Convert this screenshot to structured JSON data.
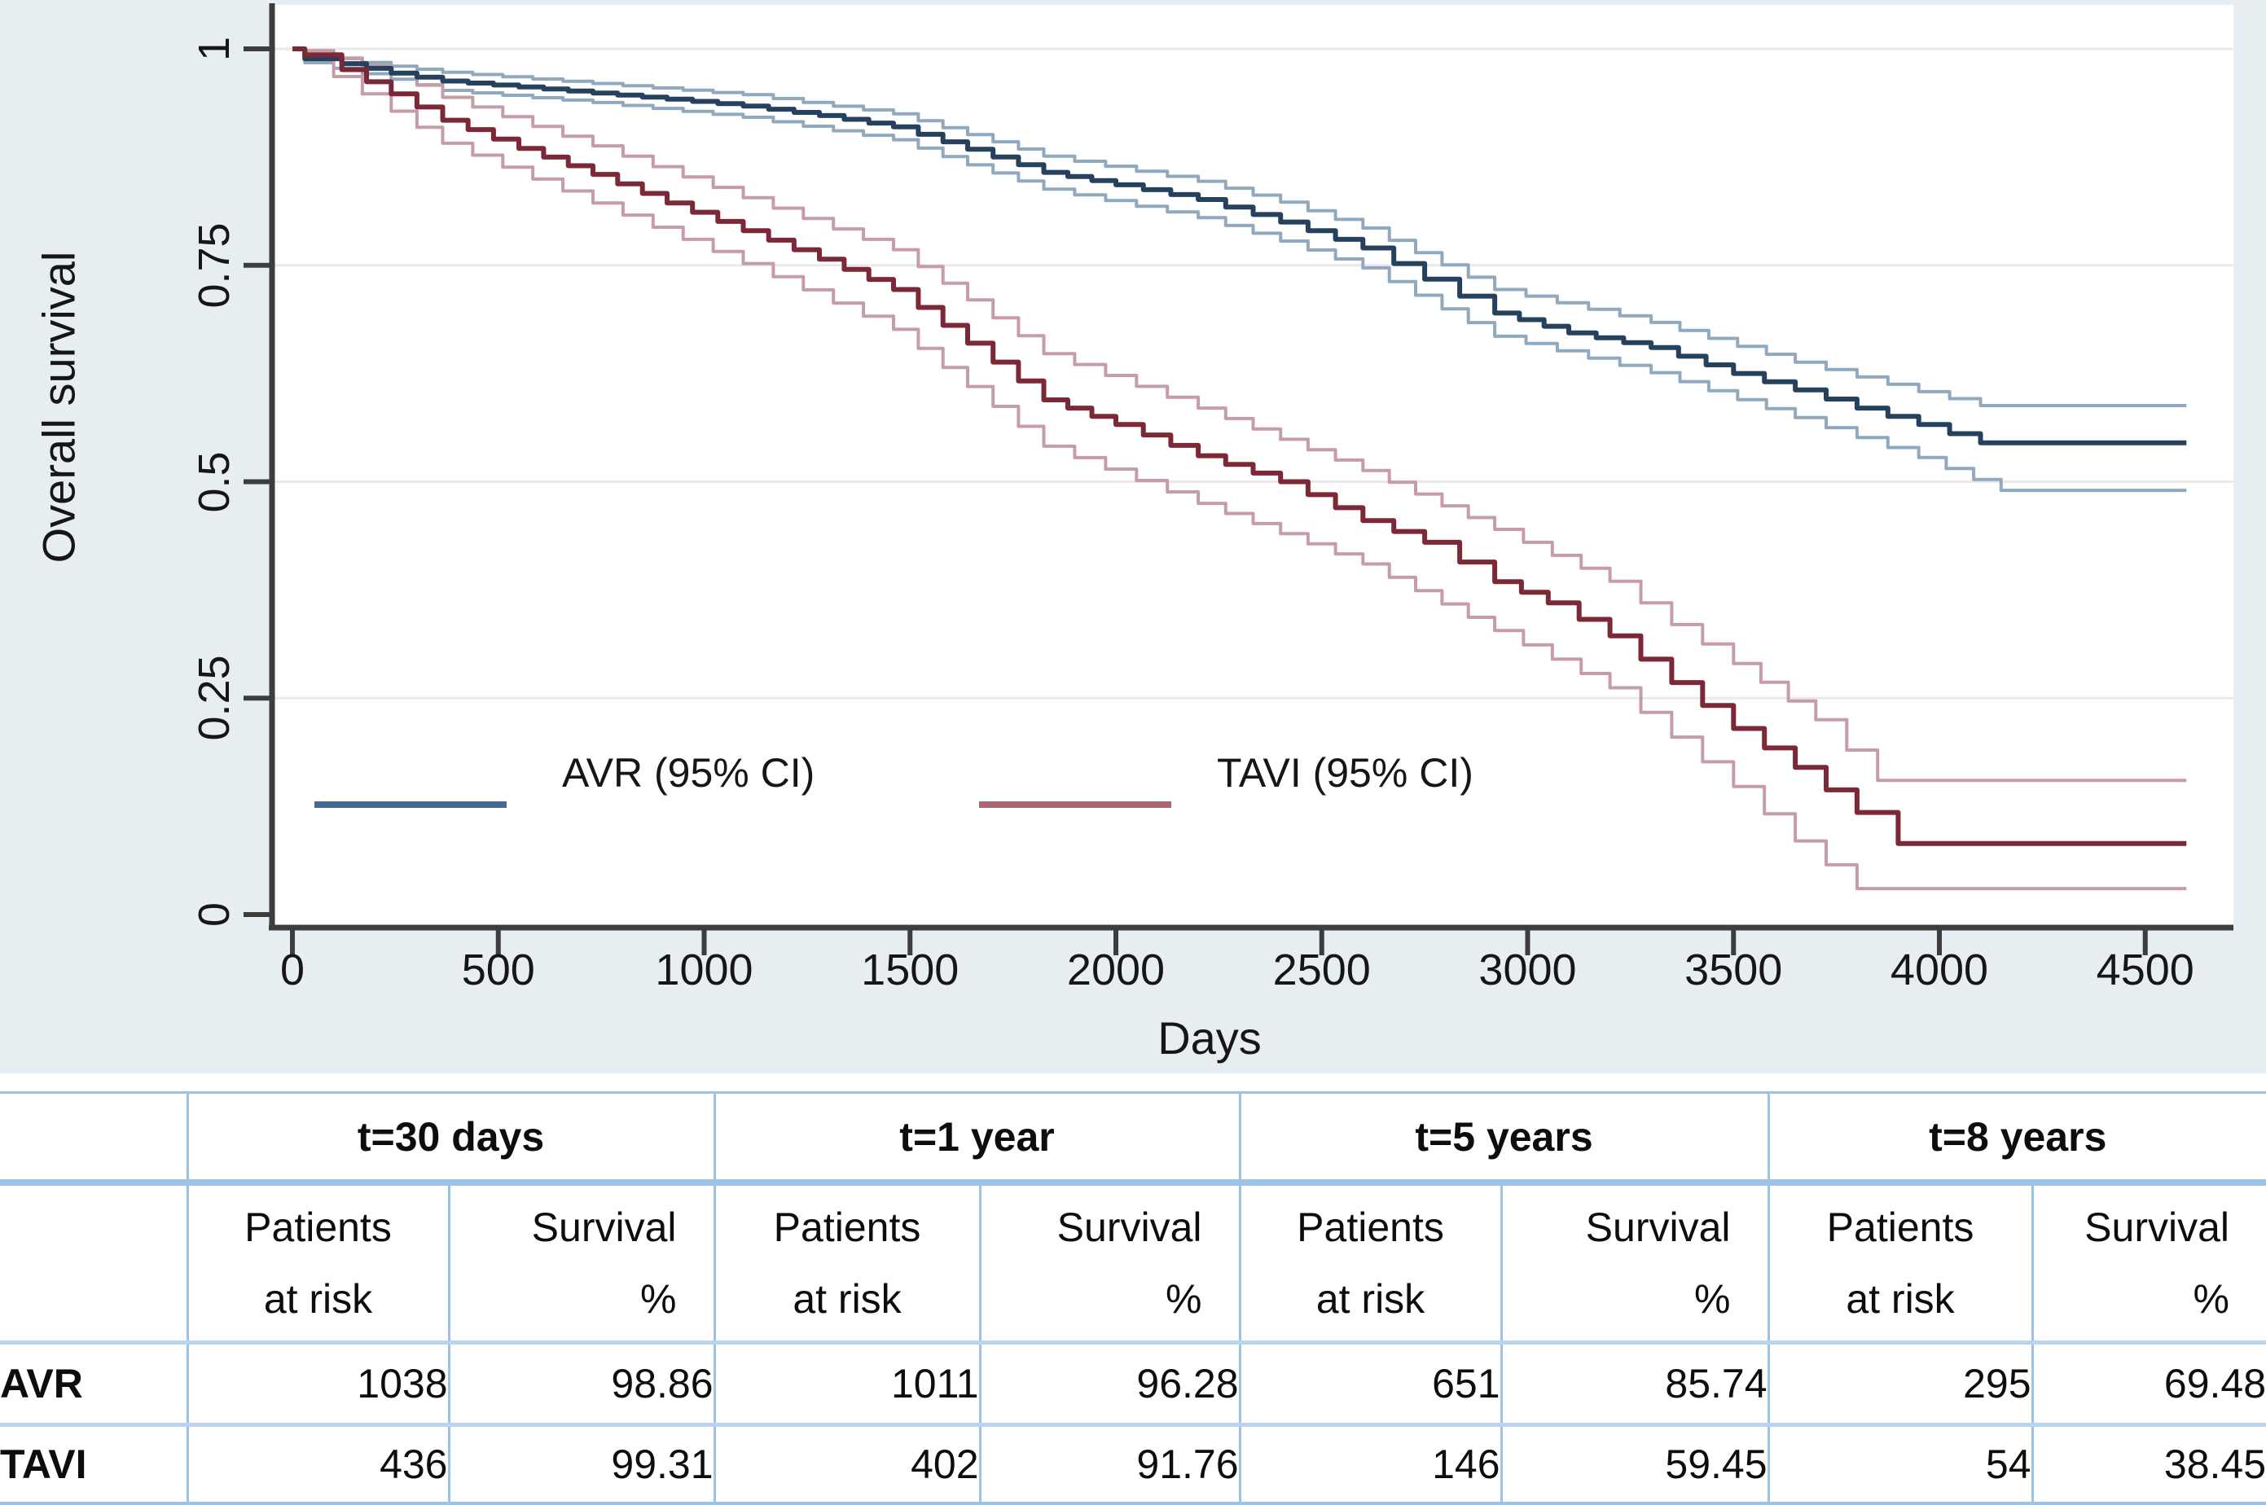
{
  "chart_data": {
    "type": "line",
    "subtype": "kaplan-meier-step",
    "title": "",
    "xlabel": "Days",
    "ylabel": "Overall survival",
    "xlim": [
      0,
      4600
    ],
    "ylim": [
      0,
      1
    ],
    "grid": "horizontal",
    "legend_position": "inside-lower-left",
    "x_ticks": [
      {
        "label": "0",
        "value": 0
      },
      {
        "label": "500",
        "value": 500
      },
      {
        "label": "1000",
        "value": 1000
      },
      {
        "label": "1500",
        "value": 1500
      },
      {
        "label": "2000",
        "value": 2000
      },
      {
        "label": "2500",
        "value": 2500
      },
      {
        "label": "3000",
        "value": 3000
      },
      {
        "label": "3500",
        "value": 3500
      },
      {
        "label": "4000",
        "value": 4000
      },
      {
        "label": "4500",
        "value": 4500
      }
    ],
    "y_ticks": [
      {
        "label": "1",
        "value": 1
      },
      {
        "label": "0.75",
        "value": 0.75
      },
      {
        "label": "0.5",
        "value": 0.5
      },
      {
        "label": "0.25",
        "value": 0.25
      },
      {
        "label": "0",
        "value": 0
      }
    ],
    "legend": [
      {
        "label": "AVR (95% CI)",
        "swatch_color": "#456a8d"
      },
      {
        "label": "TAVI (95% CI)",
        "swatch_color": "#aa6671"
      }
    ],
    "series": [
      {
        "name": "AVR upper 95% CI",
        "role": "ci",
        "color": "#90a9be",
        "width": 4,
        "points": [
          [
            0,
            1.0
          ],
          [
            30,
            0.993
          ],
          [
            240,
            0.98
          ],
          [
            365,
            0.973
          ],
          [
            730,
            0.96
          ],
          [
            1095,
            0.947
          ],
          [
            1460,
            0.925
          ],
          [
            1640,
            0.901
          ],
          [
            1825,
            0.876
          ],
          [
            2200,
            0.847
          ],
          [
            2400,
            0.823
          ],
          [
            2600,
            0.793
          ],
          [
            2920,
            0.722
          ],
          [
            3300,
            0.684
          ],
          [
            3650,
            0.638
          ],
          [
            3950,
            0.604
          ],
          [
            4100,
            0.588
          ],
          [
            4600,
            0.588
          ]
        ]
      },
      {
        "name": "AVR lower 95% CI",
        "role": "ci",
        "color": "#90a9be",
        "width": 4,
        "points": [
          [
            0,
            1.0
          ],
          [
            30,
            0.984
          ],
          [
            240,
            0.965
          ],
          [
            365,
            0.952
          ],
          [
            730,
            0.938
          ],
          [
            1095,
            0.921
          ],
          [
            1460,
            0.895
          ],
          [
            1640,
            0.866
          ],
          [
            1825,
            0.838
          ],
          [
            2200,
            0.805
          ],
          [
            2400,
            0.778
          ],
          [
            2600,
            0.747
          ],
          [
            2920,
            0.668
          ],
          [
            3300,
            0.626
          ],
          [
            3650,
            0.574
          ],
          [
            3950,
            0.528
          ],
          [
            4150,
            0.49
          ],
          [
            4600,
            0.49
          ]
        ]
      },
      {
        "name": "TAVI upper 95% CI",
        "role": "ci",
        "color": "#c69ca6",
        "width": 4,
        "points": [
          [
            0,
            1.0
          ],
          [
            30,
            0.998
          ],
          [
            240,
            0.972
          ],
          [
            365,
            0.944
          ],
          [
            730,
            0.888
          ],
          [
            1095,
            0.828
          ],
          [
            1460,
            0.768
          ],
          [
            1640,
            0.71
          ],
          [
            1825,
            0.648
          ],
          [
            2200,
            0.585
          ],
          [
            2600,
            0.513
          ],
          [
            2920,
            0.445
          ],
          [
            3200,
            0.385
          ],
          [
            3350,
            0.335
          ],
          [
            3500,
            0.29
          ],
          [
            3700,
            0.225
          ],
          [
            3850,
            0.155
          ],
          [
            4600,
            0.155
          ]
        ]
      },
      {
        "name": "TAVI lower 95% CI",
        "role": "ci",
        "color": "#c69ca6",
        "width": 4,
        "points": [
          [
            0,
            1.0
          ],
          [
            30,
            0.988
          ],
          [
            240,
            0.928
          ],
          [
            365,
            0.891
          ],
          [
            730,
            0.822
          ],
          [
            1095,
            0.752
          ],
          [
            1460,
            0.676
          ],
          [
            1640,
            0.61
          ],
          [
            1825,
            0.541
          ],
          [
            2200,
            0.475
          ],
          [
            2600,
            0.405
          ],
          [
            2920,
            0.328
          ],
          [
            3200,
            0.262
          ],
          [
            3350,
            0.205
          ],
          [
            3500,
            0.148
          ],
          [
            3650,
            0.085
          ],
          [
            3800,
            0.03
          ],
          [
            4600,
            0.03
          ]
        ]
      },
      {
        "name": "AVR",
        "role": "estimate",
        "color": "#26415e",
        "width": 6,
        "points": [
          [
            0,
            1.0
          ],
          [
            30,
            0.9886
          ],
          [
            120,
            0.983
          ],
          [
            240,
            0.972
          ],
          [
            365,
            0.9628
          ],
          [
            550,
            0.956
          ],
          [
            730,
            0.949
          ],
          [
            910,
            0.942
          ],
          [
            1095,
            0.934
          ],
          [
            1280,
            0.923
          ],
          [
            1460,
            0.91
          ],
          [
            1640,
            0.884
          ],
          [
            1825,
            0.8574
          ],
          [
            2000,
            0.843
          ],
          [
            2200,
            0.826
          ],
          [
            2400,
            0.8
          ],
          [
            2600,
            0.77
          ],
          [
            2750,
            0.734
          ],
          [
            2920,
            0.6948
          ],
          [
            3100,
            0.672
          ],
          [
            3300,
            0.655
          ],
          [
            3500,
            0.625
          ],
          [
            3650,
            0.606
          ],
          [
            3800,
            0.585
          ],
          [
            3950,
            0.566
          ],
          [
            4100,
            0.545
          ],
          [
            4600,
            0.545
          ]
        ]
      },
      {
        "name": "TAVI",
        "role": "estimate",
        "color": "#7d2836",
        "width": 6,
        "points": [
          [
            0,
            1.0
          ],
          [
            30,
            0.9931
          ],
          [
            120,
            0.976
          ],
          [
            240,
            0.948
          ],
          [
            365,
            0.9176
          ],
          [
            550,
            0.885
          ],
          [
            730,
            0.855
          ],
          [
            910,
            0.822
          ],
          [
            1095,
            0.79
          ],
          [
            1280,
            0.757
          ],
          [
            1460,
            0.722
          ],
          [
            1640,
            0.66
          ],
          [
            1825,
            0.5945
          ],
          [
            2000,
            0.566
          ],
          [
            2200,
            0.53
          ],
          [
            2400,
            0.5
          ],
          [
            2600,
            0.455
          ],
          [
            2750,
            0.43
          ],
          [
            2920,
            0.3845
          ],
          [
            3050,
            0.36
          ],
          [
            3200,
            0.322
          ],
          [
            3350,
            0.268
          ],
          [
            3500,
            0.215
          ],
          [
            3650,
            0.17
          ],
          [
            3800,
            0.118
          ],
          [
            3900,
            0.082
          ],
          [
            4600,
            0.082
          ]
        ]
      }
    ]
  },
  "table": {
    "group_headers": [
      "t=30 days",
      "t=1 year",
      "t=5 years",
      "t=8 years"
    ],
    "sub_headers": [
      {
        "line1": "Patients",
        "line2": "at risk"
      },
      {
        "line1": "Survival",
        "line2": "%"
      },
      {
        "line1": "Patients",
        "line2": "at risk"
      },
      {
        "line1": "Survival",
        "line2": "%"
      },
      {
        "line1": "Patients",
        "line2": "at risk"
      },
      {
        "line1": "Survival",
        "line2": "%"
      },
      {
        "line1": "Patients",
        "line2": "at risk"
      },
      {
        "line1": "Survival",
        "line2": "%"
      }
    ],
    "rows": [
      {
        "label": "AVR",
        "values": [
          "1038",
          "98.86",
          "1011",
          "96.28",
          "651",
          "85.74",
          "295",
          "69.48"
        ]
      },
      {
        "label": "TAVI",
        "values": [
          "436",
          "99.31",
          "402",
          "91.76",
          "146",
          "59.45",
          "54",
          "38.45"
        ]
      }
    ]
  },
  "colors": {
    "panel_bg": "#e7eef2",
    "plot_bg": "#ffffff",
    "axis": "#3d3d3d",
    "grid": "#ebe8e9",
    "table_border": "#9cc2e5",
    "table_border_light": "#b9d4ec"
  }
}
